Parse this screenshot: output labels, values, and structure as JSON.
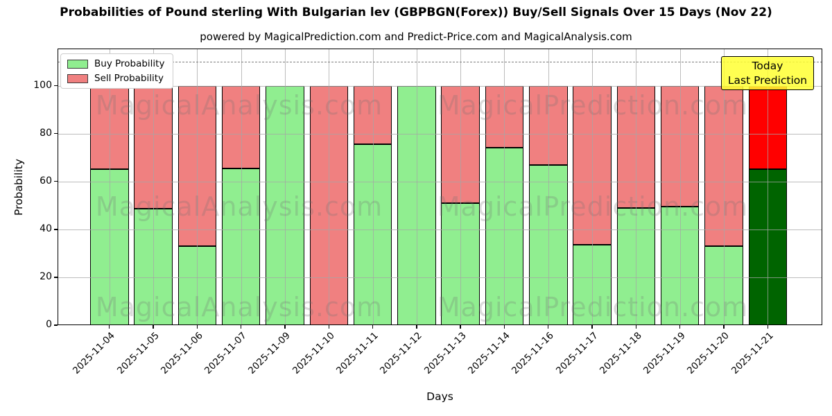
{
  "title": "Probabilities of Pound sterling With Bulgarian lev (GBPBGN(Forex)) Buy/Sell Signals Over 15 Days (Nov 22)",
  "subtitle": "powered by MagicalPrediction.com and Predict-Price.com and MagicalAnalysis.com",
  "annotation": {
    "line1": "Today",
    "line2": "Last Prediction"
  },
  "watermarks": {
    "left": "MagicalAnalysis.com",
    "right": "MagicalPrediction.com"
  },
  "colors": {
    "buy": "#90EE90",
    "sell": "#F08080",
    "today_buy": "#006400",
    "today_sell": "#FF0000",
    "bar_edge": "#000000",
    "annotation_bg": "#FFFF32",
    "grid": "#a5a5a5",
    "dashed_line": "#7a7a7a"
  },
  "chart_data": {
    "type": "bar",
    "stacked": true,
    "title": "Probabilities of Pound sterling With Bulgarian lev (GBPBGN(Forex)) Buy/Sell Signals Over 15 Days (Nov 22)",
    "xlabel": "Days",
    "ylabel": "Probability",
    "categories": [
      "2025-11-04",
      "2025-11-05",
      "2025-11-06",
      "2025-11-07",
      "2025-11-09",
      "2025-11-10",
      "2025-11-11",
      "2025-11-12",
      "2025-11-13",
      "2025-11-14",
      "2025-11-16",
      "2025-11-17",
      "2025-11-18",
      "2025-11-19",
      "2025-11-20",
      "2025-11-21"
    ],
    "series": [
      {
        "name": "Buy Probability",
        "color": "#90EE90",
        "values": [
          65,
          48.5,
          33,
          65.5,
          100,
          0,
          75.5,
          100,
          51,
          74,
          67,
          33.5,
          49,
          49.5,
          33,
          65
        ]
      },
      {
        "name": "Sell Probability",
        "color": "#F08080",
        "values": [
          35,
          51.5,
          67,
          34.5,
          0,
          100,
          24.5,
          0,
          49,
          26,
          33,
          66.5,
          51,
          50.5,
          67,
          35
        ]
      }
    ],
    "today_index": 15,
    "today_colors": {
      "buy": "#006400",
      "sell": "#FF0000"
    },
    "ylim": [
      0,
      115.5
    ],
    "yticks": [
      0,
      20,
      40,
      60,
      80,
      100
    ],
    "dashed_line_y": 110,
    "grid": true,
    "legend_position": "upper left"
  }
}
